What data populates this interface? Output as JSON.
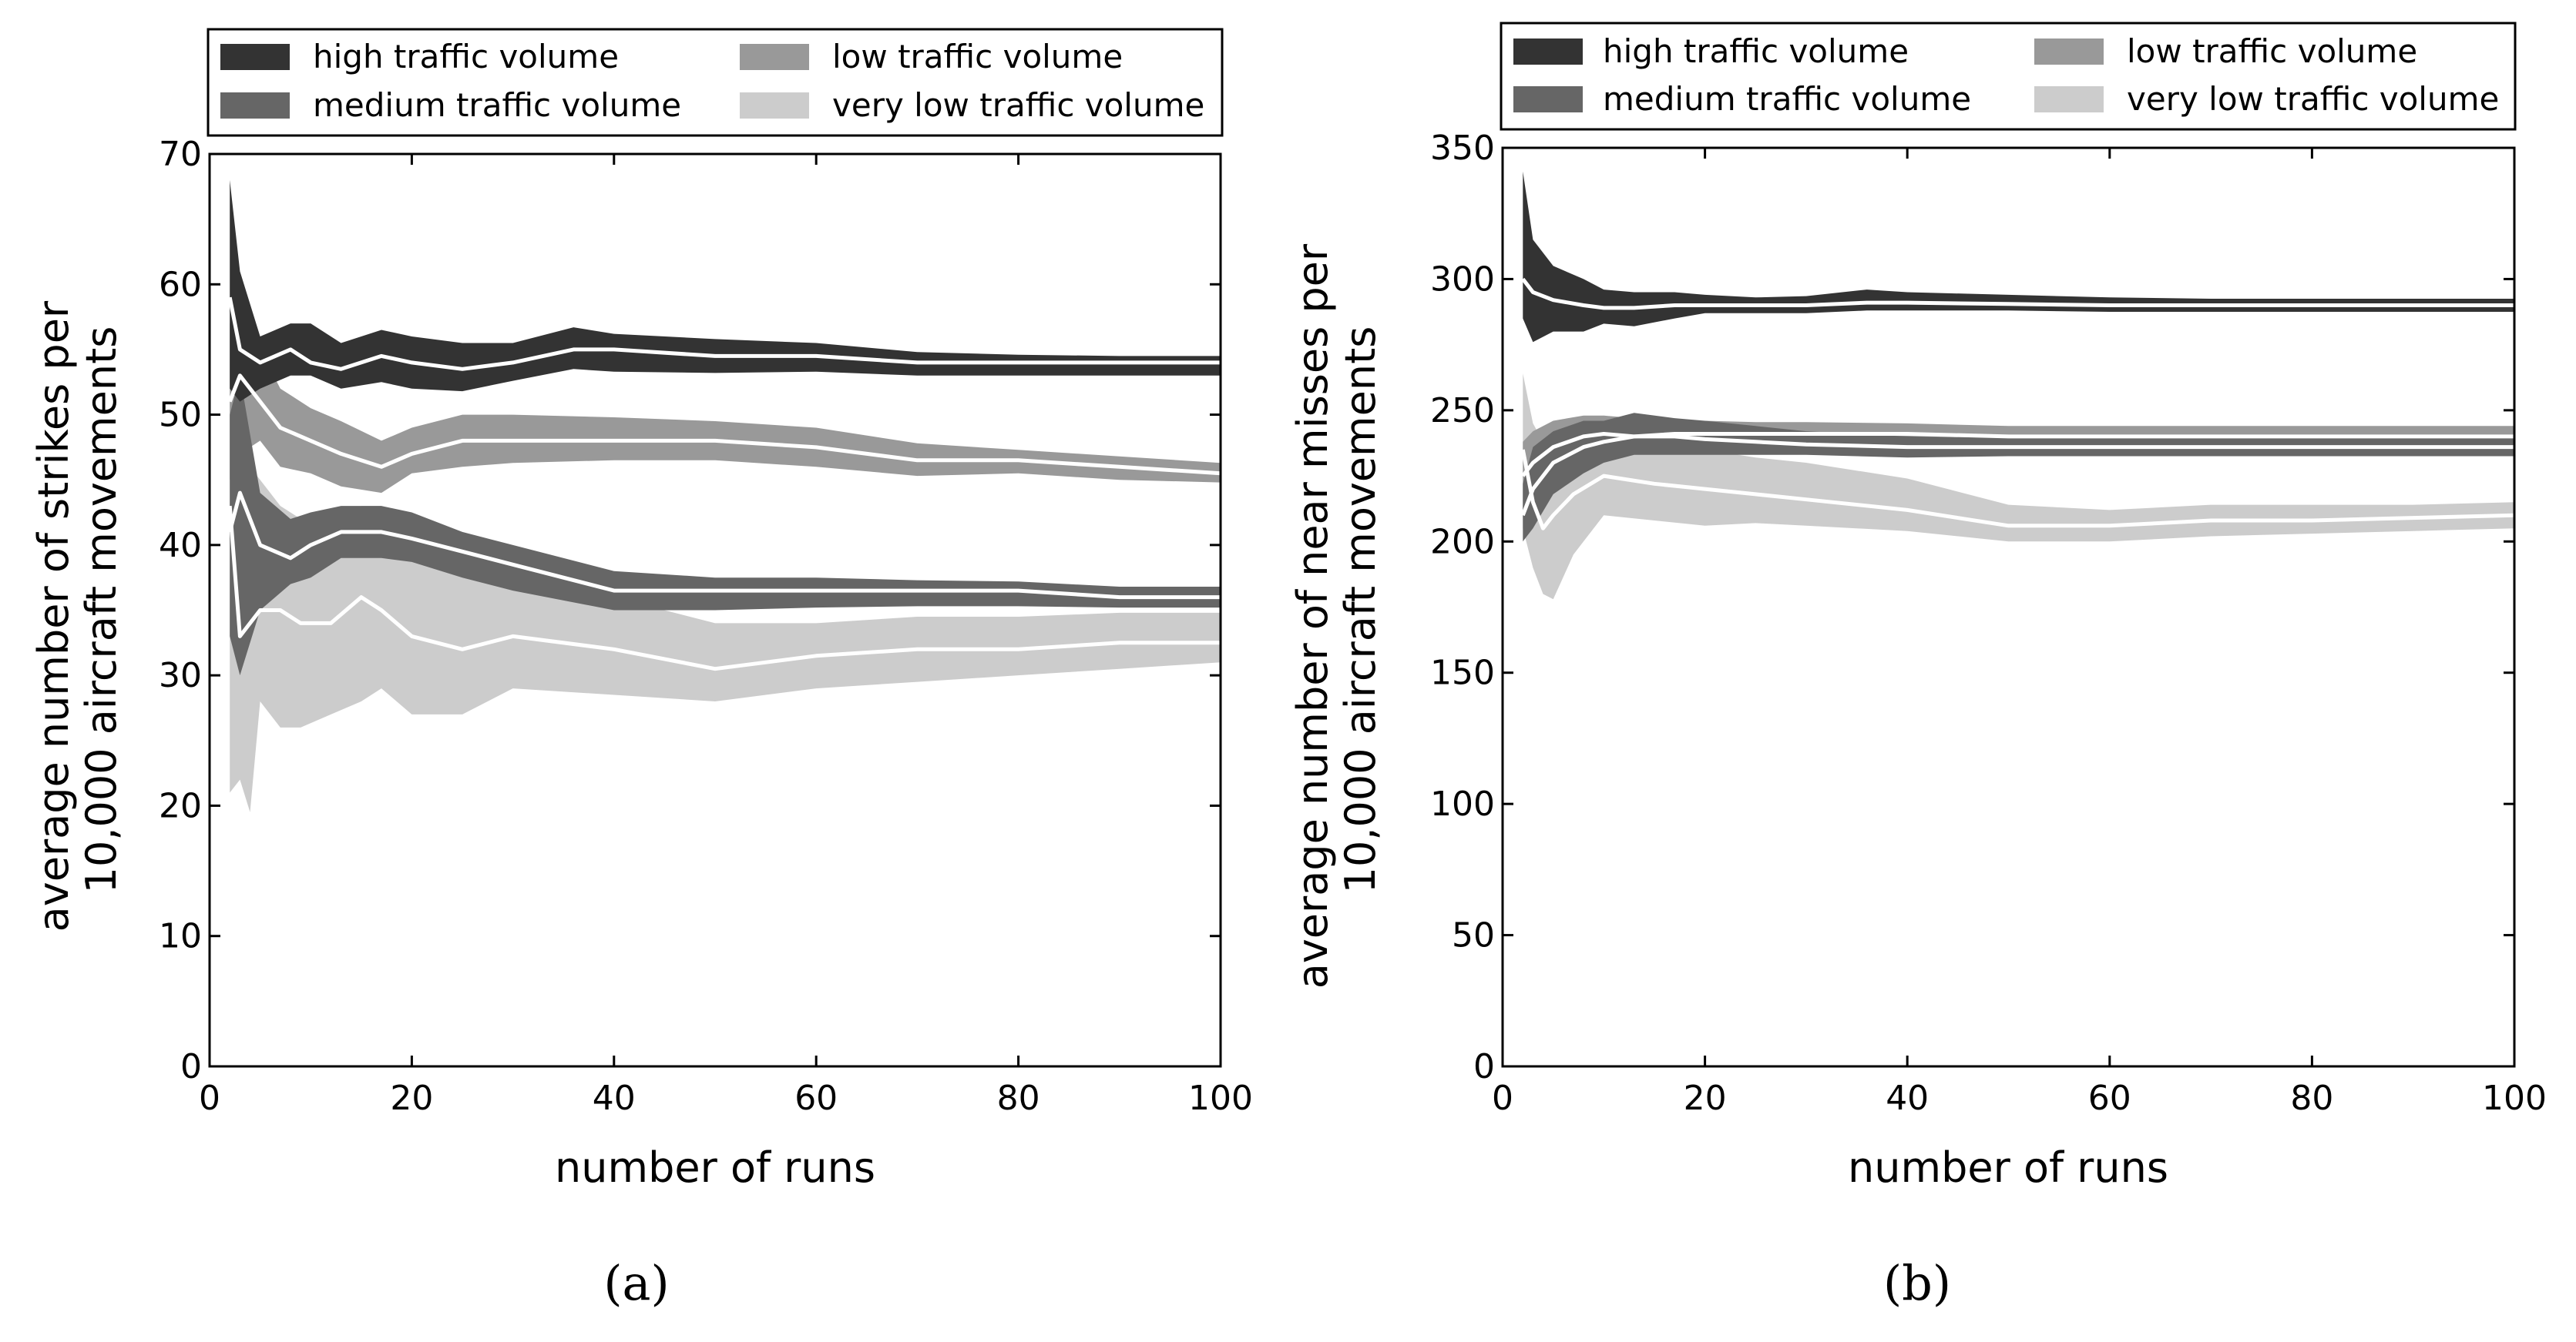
{
  "chart_data": [
    {
      "type": "area",
      "panel": "(a)",
      "xlabel": "number of runs",
      "ylabel_lines": [
        "average number of strikes per",
        "10,000 aircraft movements"
      ],
      "xlim": [
        0,
        100
      ],
      "ylim": [
        0,
        70
      ],
      "xticks": [
        "0",
        "20",
        "40",
        "60",
        "80",
        "100"
      ],
      "yticks": [
        "0",
        "10",
        "20",
        "30",
        "40",
        "50",
        "60",
        "70"
      ],
      "xtick_values": [
        0,
        20,
        40,
        60,
        80,
        100
      ],
      "ytick_values": [
        0,
        10,
        20,
        30,
        40,
        50,
        60,
        70
      ],
      "legend": {
        "placement": "top",
        "columns": 2
      },
      "series": [
        {
          "name": "high traffic volume",
          "color": "#333333",
          "x": [
            2,
            3,
            5,
            8,
            10,
            13,
            17,
            20,
            25,
            30,
            36,
            40,
            50,
            60,
            70,
            80,
            90,
            100
          ],
          "mean": [
            59,
            55,
            54,
            55,
            54,
            53.5,
            54.5,
            54,
            53.5,
            54,
            55,
            55,
            54.5,
            54.5,
            54,
            54,
            54,
            54
          ],
          "lower": [
            52,
            51,
            52,
            53,
            53,
            52,
            52.5,
            52,
            51.8,
            52.6,
            53.5,
            53.3,
            53.2,
            53.3,
            53,
            53,
            53,
            53
          ],
          "upper": [
            68,
            61,
            56,
            57,
            57,
            55.5,
            56.5,
            56,
            55.5,
            55.5,
            56.7,
            56.2,
            55.8,
            55.5,
            54.8,
            54.6,
            54.5,
            54.5
          ]
        },
        {
          "name": "medium traffic volume",
          "color": "#666666",
          "x": [
            2,
            3,
            5,
            8,
            10,
            13,
            17,
            20,
            25,
            30,
            40,
            50,
            60,
            70,
            80,
            90,
            100
          ],
          "mean": [
            41,
            44,
            40,
            39,
            40,
            41,
            41,
            40.5,
            39.5,
            38.5,
            36.5,
            36.5,
            36.5,
            36.5,
            36.5,
            36,
            36
          ],
          "lower": [
            33,
            30,
            35,
            37,
            37.5,
            39,
            39,
            38.7,
            37.5,
            36.5,
            35,
            35,
            35.2,
            35.3,
            35.3,
            35.2,
            35.2
          ],
          "upper": [
            50,
            53,
            44,
            42,
            42.5,
            43,
            43,
            42.5,
            41,
            40,
            38,
            37.5,
            37.5,
            37.3,
            37.2,
            36.8,
            36.8
          ]
        },
        {
          "name": "low traffic volume",
          "color": "#999999",
          "x": [
            2,
            3,
            5,
            7,
            10,
            13,
            17,
            20,
            25,
            30,
            40,
            50,
            60,
            70,
            80,
            90,
            100
          ],
          "mean": [
            51,
            53,
            51,
            49,
            48,
            47,
            46,
            47,
            48,
            48,
            48,
            48,
            47.5,
            46.5,
            46.5,
            46,
            45.5
          ],
          "lower": [
            45,
            47,
            48,
            46,
            45.5,
            44.5,
            44,
            45.5,
            46,
            46.3,
            46.5,
            46.5,
            46,
            45.3,
            45.5,
            45,
            44.8
          ],
          "upper": [
            57,
            58,
            55,
            52,
            50.5,
            49.5,
            48,
            49,
            50,
            50,
            49.8,
            49.5,
            49,
            47.8,
            47.3,
            46.8,
            46.3
          ]
        },
        {
          "name": "very low traffic volume",
          "color": "#cccccc",
          "x": [
            2,
            3,
            4,
            5,
            7,
            9,
            12,
            15,
            17,
            20,
            25,
            30,
            40,
            50,
            60,
            70,
            80,
            90,
            100
          ],
          "mean": [
            43,
            33,
            34,
            35,
            35,
            34,
            34,
            36,
            35,
            33,
            32,
            33,
            32,
            30.5,
            31.5,
            32,
            32,
            32.5,
            32.5
          ],
          "lower": [
            21,
            22,
            19.5,
            28,
            26,
            26,
            27,
            28,
            29,
            27,
            27,
            29,
            28.5,
            28,
            29,
            29.5,
            30,
            30.5,
            31
          ],
          "upper": [
            58,
            48,
            46,
            45,
            43,
            42,
            42,
            43,
            43,
            40,
            38,
            37,
            36,
            34,
            34,
            34.5,
            34.5,
            34.8,
            34.8
          ]
        }
      ]
    },
    {
      "type": "area",
      "panel": "(b)",
      "xlabel": "number of runs",
      "ylabel_lines": [
        "average number of near misses per",
        "10,000 aircraft movements"
      ],
      "xlim": [
        0,
        100
      ],
      "ylim": [
        0,
        350
      ],
      "xticks": [
        "0",
        "20",
        "40",
        "60",
        "80",
        "100"
      ],
      "yticks": [
        "0",
        "50",
        "100",
        "150",
        "200",
        "250",
        "300",
        "350"
      ],
      "xtick_values": [
        0,
        20,
        40,
        60,
        80,
        100
      ],
      "ytick_values": [
        0,
        50,
        100,
        150,
        200,
        250,
        300,
        350
      ],
      "legend": {
        "placement": "top",
        "columns": 2
      },
      "series": [
        {
          "name": "high traffic volume",
          "color": "#333333",
          "x": [
            2,
            3,
            5,
            8,
            10,
            13,
            17,
            20,
            25,
            30,
            36,
            40,
            50,
            60,
            70,
            80,
            90,
            100
          ],
          "mean": [
            300,
            295,
            292,
            290,
            289,
            289,
            290,
            290,
            290,
            290,
            291,
            291,
            290.5,
            290,
            290,
            290,
            290,
            290
          ],
          "lower": [
            285,
            276,
            280,
            280,
            283,
            282,
            285,
            287,
            287,
            287,
            288,
            288,
            288,
            287.5,
            287.5,
            287.5,
            287.5,
            287.5
          ],
          "upper": [
            341,
            315,
            305,
            300,
            296,
            295,
            295,
            294,
            293,
            293.5,
            296,
            295,
            294,
            293,
            292.5,
            292.5,
            292.5,
            292.5
          ]
        },
        {
          "name": "medium traffic volume",
          "color": "#666666",
          "x": [
            2,
            3,
            5,
            8,
            10,
            13,
            17,
            20,
            25,
            30,
            40,
            50,
            60,
            70,
            80,
            90,
            100
          ],
          "mean": [
            210,
            220,
            230,
            236,
            238,
            240,
            240,
            239,
            238,
            237,
            236,
            236,
            236,
            236,
            236,
            236,
            236
          ],
          "lower": [
            200,
            205,
            218,
            226,
            230,
            233,
            233,
            233,
            233,
            233,
            232,
            232.5,
            232.5,
            232.5,
            232.5,
            232.5,
            232.5
          ],
          "upper": [
            222,
            236,
            242,
            246,
            246,
            249,
            247,
            246,
            244,
            242,
            240,
            239.5,
            239.5,
            239.5,
            239.5,
            239.5,
            239.5
          ]
        },
        {
          "name": "low traffic volume",
          "color": "#999999",
          "x": [
            2,
            3,
            5,
            8,
            10,
            13,
            17,
            20,
            25,
            30,
            40,
            50,
            60,
            70,
            80,
            90,
            100
          ],
          "mean": [
            225,
            230,
            236,
            240,
            241,
            240,
            241,
            241,
            241,
            241,
            241,
            240,
            240,
            240,
            240,
            240,
            240
          ],
          "lower": [
            212,
            218,
            226,
            232,
            234,
            234,
            236,
            236,
            236.5,
            237,
            237,
            237,
            237,
            237,
            237,
            237,
            237
          ],
          "upper": [
            238,
            242,
            246,
            248,
            248,
            247,
            246,
            246,
            245.5,
            245.5,
            245,
            244,
            244,
            244,
            244,
            244,
            244
          ]
        },
        {
          "name": "very low traffic volume",
          "color": "#cccccc",
          "x": [
            2,
            3,
            4,
            5,
            7,
            10,
            15,
            20,
            25,
            30,
            40,
            50,
            60,
            70,
            80,
            90,
            100
          ],
          "mean": [
            235,
            215,
            205,
            210,
            218,
            225,
            222,
            220,
            218,
            216,
            212,
            206,
            206,
            208,
            208,
            209,
            210
          ],
          "lower": [
            205,
            190,
            180,
            178,
            195,
            210,
            208,
            206,
            207,
            206,
            204,
            200,
            200,
            202,
            203,
            204,
            205
          ],
          "upper": [
            264,
            245,
            238,
            236,
            240,
            248,
            238,
            235,
            232,
            230,
            224,
            214,
            212,
            214,
            214,
            214,
            215
          ]
        }
      ]
    }
  ]
}
